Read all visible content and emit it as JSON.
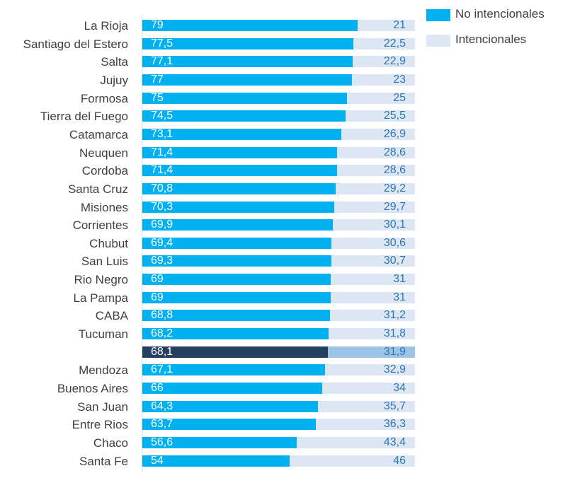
{
  "chart_data": {
    "type": "bar",
    "orientation": "horizontal",
    "stacked": true,
    "normalized": true,
    "categories": [
      "La Rioja",
      "Santiago del Estero",
      "Salta",
      "Jujuy",
      "Formosa",
      "Tierra del Fuego",
      "Catamarca",
      "Neuquen",
      "Cordoba",
      "Santa Cruz",
      "Misiones",
      "Corrientes",
      "Chubut",
      "San Luis",
      "Rio Negro",
      "La Pampa",
      "CABA",
      "Tucuman",
      "",
      "Mendoza",
      "Buenos Aires",
      "San Juan",
      "Entre Rios",
      "Chaco",
      "Santa Fe"
    ],
    "highlight_index": 18,
    "series": [
      {
        "name": "No intencionales",
        "color": "#00B0F0",
        "highlight_color": "#243F60",
        "label_color": "#ffffff",
        "values": [
          79,
          77.5,
          77.1,
          77,
          75,
          74.5,
          73.1,
          71.4,
          71.4,
          70.8,
          70.3,
          69.9,
          69.4,
          69.3,
          69,
          69,
          68.8,
          68.2,
          68.1,
          67.1,
          66,
          64.3,
          63.7,
          56.6,
          54
        ],
        "labels": [
          "79",
          "77,5",
          "77,1",
          "77",
          "75",
          "74,5",
          "73,1",
          "71,4",
          "71,4",
          "70,8",
          "70,3",
          "69,9",
          "69,4",
          "69,3",
          "69",
          "69",
          "68,8",
          "68,2",
          "68,1",
          "67,1",
          "66",
          "64,3",
          "63,7",
          "56,6",
          "54"
        ]
      },
      {
        "name": "Intencionales",
        "color": "#DDE7F3",
        "highlight_color": "#9DC3E6",
        "label_color": "#2E75B6",
        "values": [
          21,
          22.5,
          22.9,
          23,
          25,
          25.5,
          26.9,
          28.6,
          28.6,
          29.2,
          29.7,
          30.1,
          30.6,
          30.7,
          31,
          31,
          31.2,
          31.8,
          31.9,
          32.9,
          34,
          35.7,
          36.3,
          43.4,
          46
        ],
        "labels": [
          "21",
          "22,5",
          "22,9",
          "23",
          "25",
          "25,5",
          "26,9",
          "28,6",
          "28,6",
          "29,2",
          "29,7",
          "30,1",
          "30,6",
          "30,7",
          "31",
          "31",
          "31,2",
          "31,8",
          "31,9",
          "32,9",
          "34",
          "35,7",
          "36,3",
          "43,4",
          "46"
        ]
      }
    ],
    "xlim": [
      0,
      100
    ],
    "legend": {
      "position": "top-right"
    },
    "grid": false
  }
}
